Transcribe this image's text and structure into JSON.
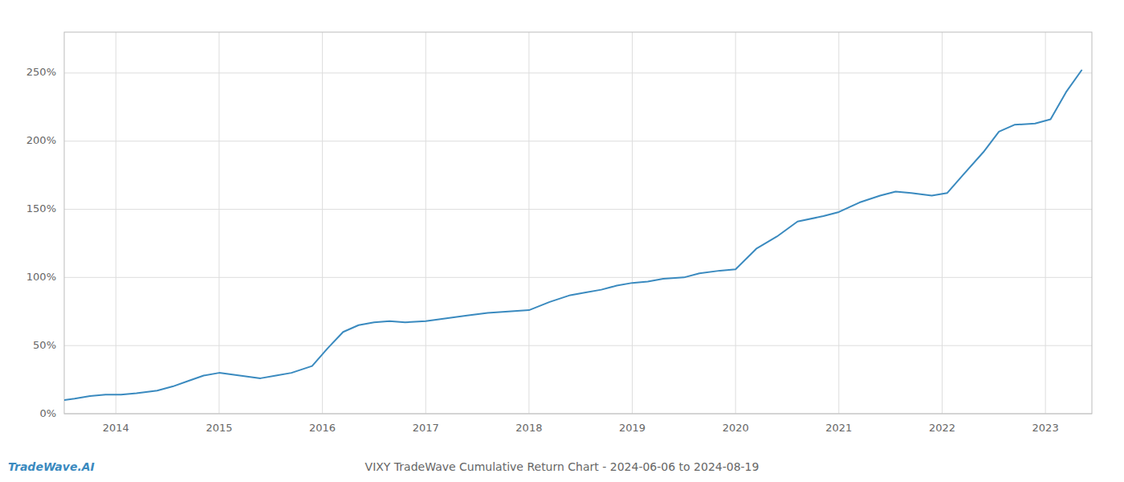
{
  "chart_data": {
    "type": "line",
    "title": "VIXY TradeWave Cumulative Return Chart - 2024-06-06 to 2024-08-19",
    "annotations": [
      "TradeWave.AI"
    ],
    "color": "#3a8abf",
    "x": [
      2013.5,
      2013.6,
      2013.75,
      2013.9,
      2014.05,
      2014.2,
      2014.4,
      2014.55,
      2014.7,
      2014.85,
      2015.0,
      2015.2,
      2015.4,
      2015.55,
      2015.7,
      2015.9,
      2016.05,
      2016.2,
      2016.35,
      2016.5,
      2016.65,
      2016.8,
      2017.0,
      2017.2,
      2017.4,
      2017.6,
      2017.8,
      2018.0,
      2018.2,
      2018.4,
      2018.55,
      2018.7,
      2018.85,
      2019.0,
      2019.15,
      2019.3,
      2019.5,
      2019.65,
      2019.85,
      2020.0,
      2020.2,
      2020.4,
      2020.6,
      2020.85,
      2021.0,
      2021.2,
      2021.4,
      2021.55,
      2021.7,
      2021.9,
      2022.05,
      2022.2,
      2022.4,
      2022.55,
      2022.7,
      2022.9,
      2023.05,
      2023.2,
      2023.35
    ],
    "values": [
      10,
      11,
      13,
      14,
      14,
      15,
      17,
      20,
      24,
      28,
      30,
      28,
      26,
      28,
      30,
      35,
      48,
      60,
      65,
      67,
      68,
      67,
      68,
      70,
      72,
      74,
      75,
      76,
      82,
      87,
      89,
      91,
      94,
      96,
      97,
      99,
      100,
      103,
      105,
      106,
      121,
      130,
      141,
      145,
      148,
      155,
      160,
      163,
      162,
      160,
      162,
      175,
      192,
      207,
      212,
      213,
      216,
      236,
      252
    ],
    "xlim": [
      2013.5,
      2023.45
    ],
    "ylim": [
      0,
      280
    ],
    "xticks": [
      2014,
      2015,
      2016,
      2017,
      2018,
      2019,
      2020,
      2021,
      2022,
      2023
    ],
    "yticks": [
      {
        "value": 0,
        "label": "0%"
      },
      {
        "value": 50,
        "label": "50%"
      },
      {
        "value": 100,
        "label": "100%"
      },
      {
        "value": 150,
        "label": "150%"
      },
      {
        "value": 200,
        "label": "200%"
      },
      {
        "value": 250,
        "label": "250%"
      }
    ],
    "grid": true
  }
}
